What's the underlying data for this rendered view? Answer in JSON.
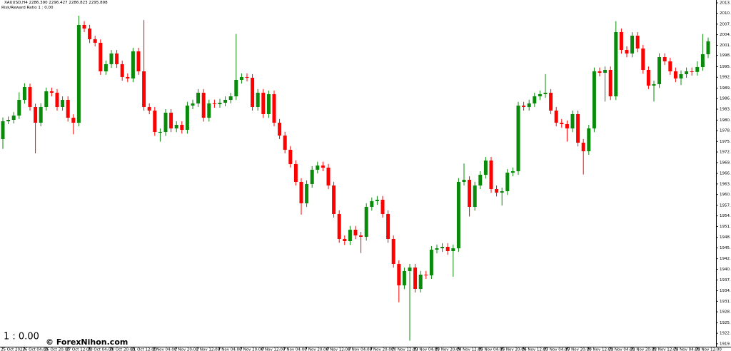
{
  "chart_data": {
    "type": "candlestick",
    "title": "XAUUSD,H4  2286.390 2296.427 2286.823 2295.898",
    "subtitle": "Risk/Reward Ratio      1 : 0.00",
    "annotations": [
      "1 : 0.00",
      "© ForexNihon.com"
    ],
    "up_color": "#0a8a0a",
    "down_color": "#ff0000",
    "grid": false,
    "ylim": [
      1918.83,
      2013.8
    ],
    "yticks": [
      {
        "value": 2013.02,
        "label": "2013.020"
      },
      {
        "value": 2010.16,
        "label": "2010.160"
      },
      {
        "value": 2007.185,
        "label": "2007.185"
      },
      {
        "value": 2004.295,
        "label": "2004.295"
      },
      {
        "value": 2001.405,
        "label": "2001.405"
      },
      {
        "value": 1998.63,
        "label": "1998.630"
      },
      {
        "value": 1995.54,
        "label": "1995.540"
      },
      {
        "value": 1992.65,
        "label": "1992.650"
      },
      {
        "value": 1989.675,
        "label": "1989.675"
      },
      {
        "value": 1986.785,
        "label": "1986.785"
      },
      {
        "value": 1983.895,
        "label": "1983.895"
      },
      {
        "value": 1980.92,
        "label": "1980.920"
      },
      {
        "value": 1978.03,
        "label": "1978.030"
      },
      {
        "value": 1975.055,
        "label": "1975.055"
      },
      {
        "value": 1972.165,
        "label": "1972.165"
      },
      {
        "value": 1969.275,
        "label": "1969.275"
      },
      {
        "value": 1966.3,
        "label": "1966.300"
      },
      {
        "value": 1963.41,
        "label": "1963.410"
      },
      {
        "value": 1960.52,
        "label": "1960.520"
      },
      {
        "value": 1957.545,
        "label": "1957.545"
      },
      {
        "value": 1954.655,
        "label": "1954.655"
      },
      {
        "value": 1951.765,
        "label": "1951.765"
      },
      {
        "value": 1948.79,
        "label": "1948.790"
      },
      {
        "value": 1945.9,
        "label": "1945.900"
      },
      {
        "value": 1942.925,
        "label": "1942.925"
      },
      {
        "value": 1940.035,
        "label": "1940.035"
      },
      {
        "value": 1937.145,
        "label": "1937.145"
      },
      {
        "value": 1934.17,
        "label": "1934.170"
      },
      {
        "value": 1931.28,
        "label": "1931.280"
      },
      {
        "value": 1928.39,
        "label": "1928.390"
      },
      {
        "value": 1925.415,
        "label": "1925.415"
      },
      {
        "value": 1922.525,
        "label": "1922.525"
      },
      {
        "value": 1919.635,
        "label": "1919.635"
      }
    ],
    "categories": [
      "25 Oct 2023",
      null,
      null,
      null,
      "26 Oct 04:00",
      null,
      null,
      null,
      "26 Oct 20:00",
      null,
      null,
      null,
      "27 Oct 12:00",
      null,
      null,
      null,
      "30 Oct 04:00",
      null,
      null,
      null,
      "30 Oct 20:00",
      null,
      null,
      null,
      "31 Oct 12:00",
      null,
      null,
      null,
      "1 Nov 04:00",
      null,
      null,
      null,
      "1 Nov 20:00",
      null,
      null,
      null,
      "2 Nov 12:00",
      null,
      null,
      null,
      "3 Nov 04:00",
      null,
      null,
      null,
      "3 Nov 20:00",
      null,
      null,
      null,
      "6 Nov 12:00",
      null,
      null,
      null,
      "7 Nov 04:00",
      null,
      null,
      null,
      "7 Nov 20:00",
      null,
      null,
      null,
      "8 Nov 12:00",
      null,
      null,
      null,
      "9 Nov 04:00",
      null,
      null,
      null,
      "9 Nov 20:00",
      null,
      null,
      null,
      "10 Nov 12:00",
      null,
      null,
      null,
      "13 Nov 04:00",
      null,
      null,
      null,
      "13 Nov 20:00",
      null,
      null,
      null,
      "14 Nov 12:00",
      null,
      null,
      null,
      "15 Nov 04:00",
      null,
      null,
      null,
      "15 Nov 20:00",
      null,
      null,
      null,
      "16 Nov 12:00",
      null,
      null,
      null,
      "17 Nov 04:00",
      null,
      null,
      null,
      "17 Nov 20:00",
      null,
      null,
      null,
      "20 Nov 12:00",
      null,
      null,
      null,
      "21 Nov 04:00",
      null,
      null,
      null,
      "21 Nov 20:00",
      null,
      null,
      null,
      "22 Nov 12:00",
      null,
      null,
      null,
      "23 Nov 04:00",
      null,
      null,
      null,
      "24 Nov 12:00",
      null,
      null
    ],
    "open": [
      1975.7,
      1980.58,
      1980.97,
      1982.15,
      1986.44,
      1989.96,
      1984.49,
      1980.19,
      1984.49,
      1988.79,
      1988.4,
      1984.49,
      1986.44,
      1981.56,
      1980.19,
      2006.96,
      2005.98,
      2003.05,
      2002.08,
      1994.26,
      1996.21,
      1999.14,
      1996.21,
      1992.7,
      1992.31,
      1999.73,
      1994.26,
      1984.49,
      1983.51,
      1977.65,
      1977.65,
      1982.93,
      1978.63,
      1979.6,
      1978.24,
      1984.88,
      1985.47,
      1988.4,
      1981.56,
      1985.47,
      1985.27,
      1985.66,
      1986.44,
      1987.42,
      1991.92,
      1992.7,
      1992.5,
      1984.49,
      1988.4,
      1982.54,
      1988.01,
      1980.19,
      1976.67,
      1972.77,
      1968.86,
      1963.97,
      1958.11,
      1963.39,
      1967.3,
      1968.47,
      1967.88,
      1963.0,
      1955.18,
      1948.34,
      1947.75,
      1950.88,
      1949.32,
      1948.93,
      1957.13,
      1958.7,
      1959.09,
      1955.18,
      1948.34,
      1941.5,
      1935.64,
      1939.55,
      1940.53,
      1934.66,
      1938.57,
      1938.38,
      1945.41,
      1945.8,
      1946.19,
      1945.02,
      1945.8,
      1963.97,
      1964.56,
      1957.13,
      1963.0,
      1965.93,
      1969.84,
      1962.02,
      1961.04,
      1961.43,
      1966.51,
      1966.9,
      1984.88,
      1984.49,
      1985.47,
      1987.42,
      1988.01,
      1988.4,
      1983.51,
      1980.19,
      1979.8,
      1978.63,
      1982.54,
      1974.72,
      1972.38,
      1978.63,
      1994.26,
      1993.87,
      1994.65,
      1987.42,
      2005.01,
      2000.12,
      1999.14,
      2004.03,
      2000.51,
      1994.65,
      1990.35,
      1990.74,
      1998.17,
      1996.99,
      1994.26,
      1992.31,
      1993.48,
      1994.26,
      1994.1,
      1995.43,
      1998.95
    ],
    "high": [
      1981.6,
      1981.9,
      1983.1,
      1988.5,
      1991.0,
      1990.9,
      1985.4,
      1985.5,
      1989.8,
      1989.8,
      1989.4,
      1987.4,
      1987.4,
      1982.5,
      2009.5,
      2008.0,
      2007.0,
      2004.0,
      2003.0,
      1997.2,
      2000.1,
      2000.1,
      1997.2,
      1993.7,
      2000.7,
      2000.7,
      2008.3,
      1985.5,
      1984.5,
      1978.6,
      1983.9,
      1983.9,
      1980.6,
      1980.6,
      1985.9,
      1986.5,
      1989.4,
      1989.4,
      1986.5,
      1986.5,
      1986.7,
      1987.4,
      1988.4,
      2004.5,
      1993.7,
      1993.7,
      1993.5,
      1989.4,
      1989.4,
      1989.0,
      1989.0,
      1981.2,
      1977.7,
      1973.8,
      1969.9,
      1965.0,
      1964.4,
      1968.3,
      1969.5,
      1969.5,
      1968.9,
      1964.0,
      1956.2,
      1949.3,
      1951.9,
      1951.9,
      1950.3,
      1958.1,
      1959.7,
      1960.1,
      1960.1,
      1956.2,
      1949.3,
      1942.5,
      1940.5,
      1941.5,
      1941.5,
      1939.6,
      1939.6,
      1946.4,
      1946.8,
      1947.2,
      1947.2,
      1946.8,
      1965.0,
      1969.0,
      1965.5,
      1964.0,
      1966.9,
      1970.8,
      1970.8,
      1963.0,
      1962.4,
      1967.5,
      1967.9,
      1985.9,
      1985.9,
      1986.5,
      1988.4,
      1989.0,
      1993.5,
      1989.4,
      1984.5,
      1981.2,
      1980.8,
      1983.5,
      1983.5,
      1975.7,
      1979.6,
      1995.3,
      1995.3,
      1995.6,
      1995.6,
      2008.0,
      2006.0,
      2001.1,
      2005.0,
      2005.0,
      2001.5,
      1995.6,
      1991.7,
      1999.2,
      1999.2,
      1998.0,
      1995.3,
      1994.5,
      1995.3,
      1995.3,
      1997.0,
      2004.5,
      2003.5
    ],
    "low": [
      1973.0,
      1979.8,
      1980.0,
      1981.2,
      1985.4,
      1983.5,
      1971.8,
      1979.2,
      1983.5,
      1987.4,
      1983.5,
      1983.5,
      1980.5,
      1977.0,
      1979.2,
      2005.0,
      2002.0,
      2001.1,
      1993.3,
      1993.3,
      1995.2,
      1995.2,
      1991.7,
      1991.3,
      1991.3,
      1993.3,
      1983.5,
      1982.5,
      1976.6,
      1975.0,
      1976.6,
      1977.6,
      1977.6,
      1977.2,
      1977.2,
      1983.9,
      1984.5,
      1980.5,
      1980.5,
      1984.3,
      1984.3,
      1984.7,
      1985.5,
      1986.4,
      1990.9,
      1991.5,
      1983.5,
      1983.5,
      1981.5,
      1981.5,
      1979.2,
      1975.7,
      1971.8,
      1967.9,
      1963.0,
      1955.0,
      1957.1,
      1962.4,
      1966.3,
      1966.9,
      1962.0,
      1954.2,
      1947.3,
      1946.7,
      1946.7,
      1948.3,
      1944.5,
      1947.9,
      1956.1,
      1957.7,
      1954.2,
      1947.3,
      1940.5,
      1931.0,
      1934.6,
      1920.5,
      1933.7,
      1933.7,
      1937.4,
      1937.4,
      1944.4,
      1944.8,
      1944.0,
      1938.0,
      1944.8,
      1963.0,
      1954.5,
      1956.1,
      1962.0,
      1964.9,
      1961.0,
      1960.0,
      1957.5,
      1960.4,
      1965.5,
      1965.9,
      1983.5,
      1983.5,
      1984.5,
      1986.4,
      1987.0,
      1982.5,
      1979.2,
      1978.8,
      1975.0,
      1977.6,
      1973.7,
      1966.0,
      1971.4,
      1977.6,
      1992.9,
      1986.0,
      1986.4,
      1986.4,
      1999.1,
      1998.1,
      1998.1,
      1999.5,
      1993.6,
      1989.4,
      1986.0,
      1989.7,
      1996.0,
      1993.3,
      1991.3,
      1990.5,
      1992.5,
      1993.1,
      1993.1,
      1994.4,
      1997.9
    ],
    "close": [
      1980.58,
      1980.97,
      1982.15,
      1986.44,
      1989.96,
      1984.49,
      1980.19,
      1984.49,
      1988.79,
      1988.4,
      1984.49,
      1986.44,
      1981.56,
      1980.19,
      2006.96,
      2005.98,
      2003.05,
      2002.08,
      1994.26,
      1996.21,
      1999.14,
      1996.21,
      1992.7,
      1992.31,
      1999.73,
      1994.26,
      1984.49,
      1983.51,
      1977.65,
      1977.65,
      1982.93,
      1978.63,
      1979.6,
      1978.24,
      1984.88,
      1985.47,
      1988.4,
      1981.56,
      1985.47,
      1985.27,
      1985.66,
      1986.44,
      1987.42,
      1991.92,
      1992.7,
      1992.5,
      1984.49,
      1988.4,
      1982.54,
      1988.01,
      1980.19,
      1976.67,
      1972.77,
      1968.86,
      1963.97,
      1958.11,
      1963.39,
      1967.3,
      1968.47,
      1967.88,
      1963.0,
      1955.18,
      1948.34,
      1947.75,
      1950.88,
      1949.32,
      1948.93,
      1957.13,
      1958.7,
      1959.09,
      1955.18,
      1948.34,
      1941.5,
      1935.64,
      1939.55,
      1940.53,
      1934.66,
      1938.57,
      1938.38,
      1945.41,
      1945.8,
      1946.19,
      1945.02,
      1945.8,
      1963.97,
      1964.56,
      1957.13,
      1963.0,
      1965.93,
      1969.84,
      1962.02,
      1961.04,
      1961.43,
      1966.51,
      1966.9,
      1984.88,
      1984.49,
      1985.47,
      1987.42,
      1988.01,
      1988.4,
      1983.51,
      1980.19,
      1979.8,
      1978.63,
      1982.54,
      1974.72,
      1972.38,
      1978.63,
      1994.26,
      1993.87,
      1994.65,
      1987.42,
      2005.01,
      2000.12,
      1999.14,
      2004.03,
      2000.51,
      1994.65,
      1990.35,
      1990.74,
      1998.17,
      1996.99,
      1994.26,
      1992.31,
      1993.48,
      1994.26,
      1994.1,
      1995.43,
      1998.95,
      2002.47
    ]
  }
}
